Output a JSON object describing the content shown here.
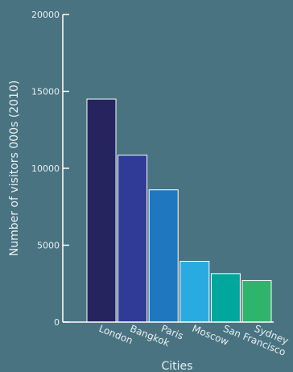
{
  "chart_data": {
    "type": "bar",
    "title": "",
    "xlabel": "Cities",
    "ylabel": "Number of visitors 000s (2010)",
    "categories": [
      "London",
      "Bangkok",
      "Paris",
      "Moscow",
      "San Francisco",
      "Sydney"
    ],
    "values": [
      14500,
      10850,
      8600,
      3950,
      3150,
      2700
    ],
    "colors": [
      "#26245e",
      "#2f3b97",
      "#1f78bf",
      "#29abe2",
      "#00a79d",
      "#2fb56b"
    ],
    "ylim": [
      0,
      20000
    ],
    "yticks": [
      0,
      5000,
      10000,
      15000,
      20000
    ],
    "grid": false,
    "legend": "none"
  },
  "style": {
    "axis_color": "#ffffff",
    "bar_stroke": "#ffffff"
  }
}
